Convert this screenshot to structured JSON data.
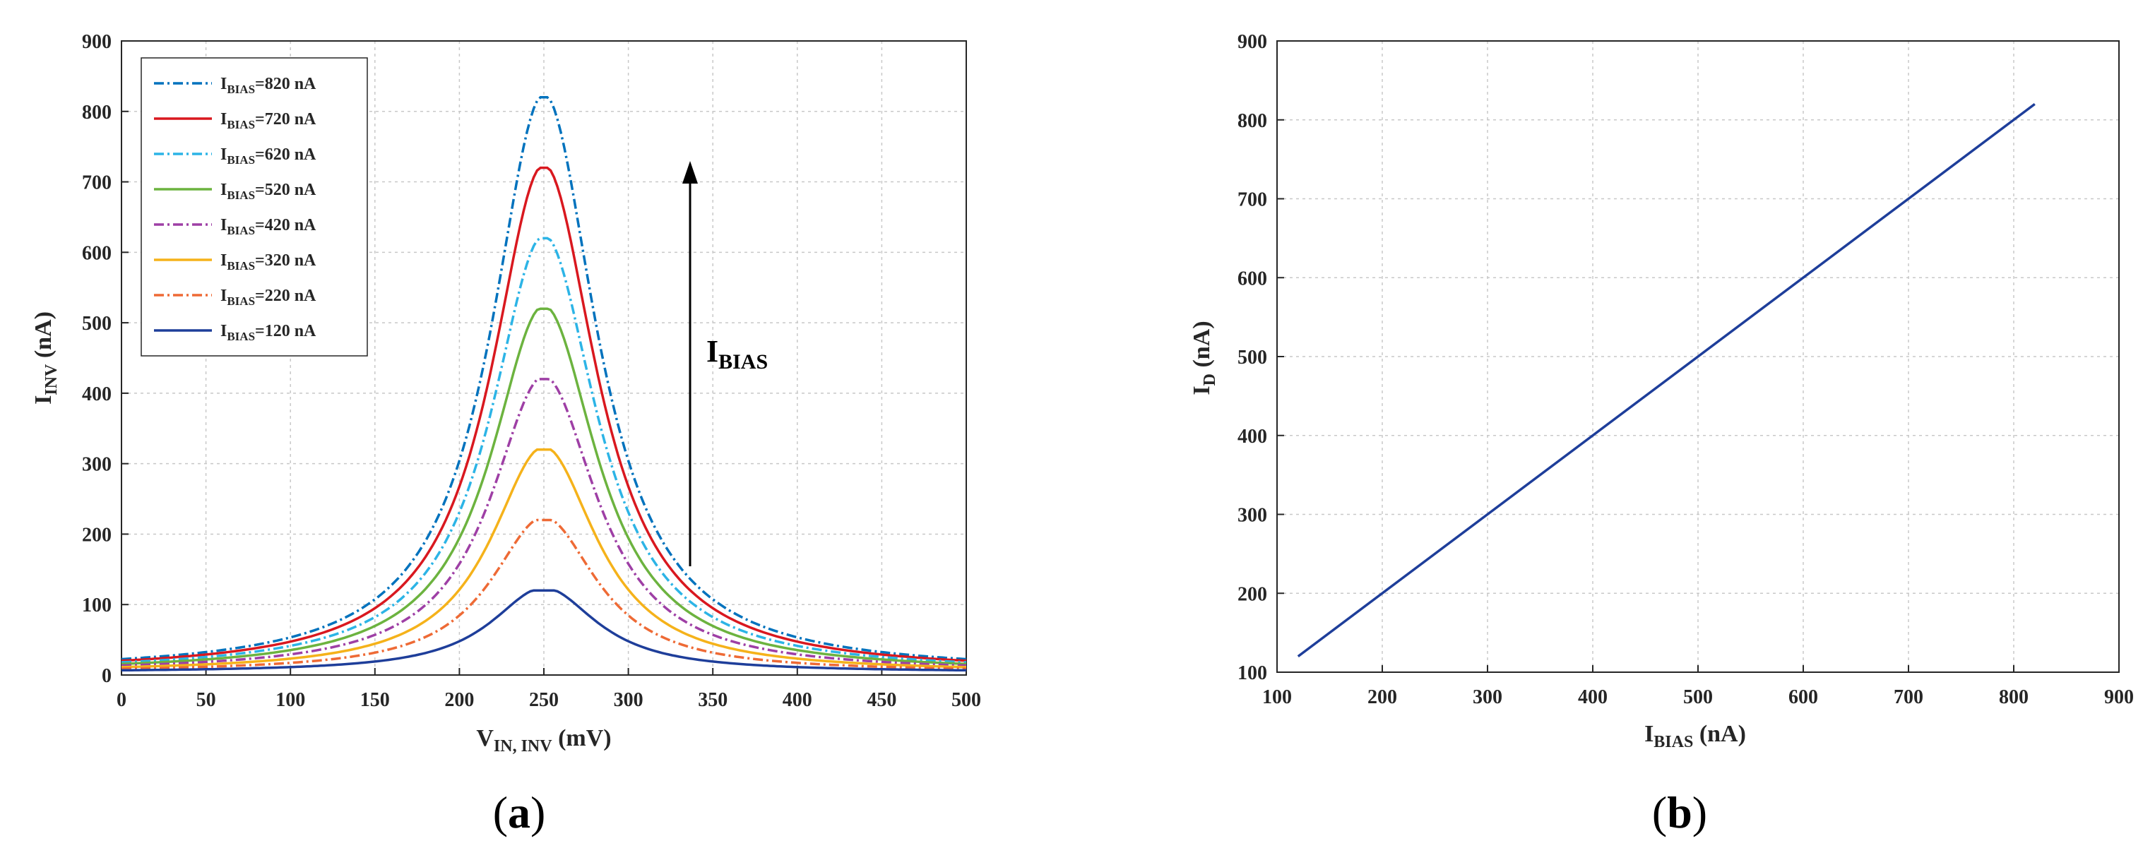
{
  "panels": [
    {
      "panel_label_open": "(",
      "panel_label_letter": "a",
      "panel_label_close": ")",
      "annotation_main": "I",
      "annotation_sub": "BIAS"
    },
    {
      "panel_label_open": "(",
      "panel_label_letter": "b",
      "panel_label_close": ")"
    }
  ],
  "chart_data": [
    {
      "type": "line",
      "ylabel_main": "I",
      "ylabel_sub": "INV",
      "ylabel_unit": " (nA)",
      "xlabel_main": "V",
      "xlabel_sub": "IN, INV",
      "xlabel_unit": " (mV)",
      "xlim": [
        0,
        500
      ],
      "ylim": [
        0,
        900
      ],
      "xticks": [
        0,
        50,
        100,
        150,
        200,
        250,
        300,
        350,
        400,
        450,
        500
      ],
      "yticks": [
        0,
        100,
        200,
        300,
        400,
        500,
        600,
        700,
        800,
        900
      ],
      "grid": true,
      "legend_position": "top-left",
      "peak_x": 250,
      "legend_prefix": "I",
      "legend_sub": "BIAS",
      "series": [
        {
          "name": "=820 nA",
          "peak": 820,
          "color": "#0072BD",
          "dash": "14 5 3 5"
        },
        {
          "name": "=720 nA",
          "peak": 720,
          "color": "#D9181F",
          "dash": ""
        },
        {
          "name": "=620 nA",
          "peak": 620,
          "color": "#2CB4E6",
          "dash": "14 5 3 5"
        },
        {
          "name": "=520 nA",
          "peak": 520,
          "color": "#6CB33F",
          "dash": ""
        },
        {
          "name": "=420 nA",
          "peak": 420,
          "color": "#9E3FA5",
          "dash": "14 5 3 5"
        },
        {
          "name": "=320 nA",
          "peak": 320,
          "color": "#F5B21A",
          "dash": ""
        },
        {
          "name": "=220 nA",
          "peak": 220,
          "color": "#EE6A35",
          "dash": "14 5 3 5"
        },
        {
          "name": "=120 nA",
          "peak": 120,
          "color": "#1E3E9A",
          "dash": ""
        }
      ]
    },
    {
      "type": "line",
      "ylabel_main": "I",
      "ylabel_sub": "D",
      "ylabel_unit": " (nA)",
      "xlabel_main": "I",
      "xlabel_sub": "BIAS",
      "xlabel_unit": " (nA)",
      "xlim": [
        100,
        900
      ],
      "ylim": [
        100,
        900
      ],
      "xticks": [
        100,
        200,
        300,
        400,
        500,
        600,
        700,
        800,
        900
      ],
      "yticks": [
        100,
        200,
        300,
        400,
        500,
        600,
        700,
        800,
        900
      ],
      "grid": true,
      "series": [
        {
          "x": [
            120,
            820
          ],
          "y": [
            120,
            820
          ],
          "color": "#1E3E9A"
        }
      ]
    }
  ]
}
